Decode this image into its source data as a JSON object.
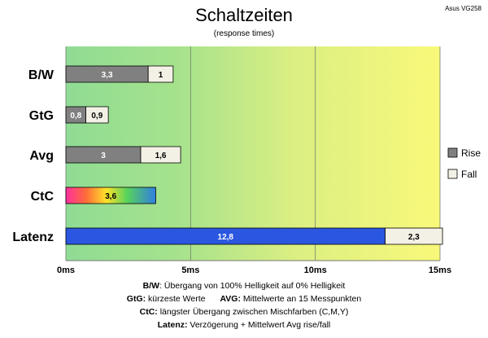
{
  "header": {
    "title": "Schaltzeiten",
    "subtitle": "(response times)",
    "model": "Asus VG258"
  },
  "chart_data": {
    "type": "bar",
    "orientation": "horizontal",
    "stacked": true,
    "categories": [
      "B/W",
      "GtG",
      "Avg",
      "CtC",
      "Latenz"
    ],
    "series": [
      {
        "name": "Rise",
        "values": [
          3.3,
          0.8,
          3,
          3.6,
          12.8
        ],
        "labels": [
          "3,3",
          "0,8",
          "3",
          "3,6",
          "12,8"
        ]
      },
      {
        "name": "Fall",
        "values": [
          1,
          0.9,
          1.6,
          null,
          2.3
        ],
        "labels": [
          "1",
          "0,9",
          "1,6",
          "",
          "2,3"
        ]
      }
    ],
    "xlim": [
      0,
      15
    ],
    "xticks": [
      0,
      5,
      10,
      15
    ],
    "xticklabels": [
      "0ms",
      "5ms",
      "10ms",
      "15ms"
    ],
    "grid": true,
    "legend_position": "right",
    "background_gradient": "green to yellow",
    "colors": {
      "rise": "#808080",
      "fall": "#f3f0e5",
      "latenz_rise": "#2b57e0",
      "bg_green": "#93dc93",
      "bg_yellow": "#f7f77a"
    }
  },
  "notes": {
    "bw_key": "B/W",
    "bw_text": ":  Übergang von 100% Helligkeit auf 0% Helligkeit",
    "gtg_key": "GtG:",
    "gtg_text": " kürzeste  Werte",
    "avg_key": "AVG:",
    "avg_text": " Mittelwerte  an 15 Messpunkten",
    "ctc_key": "CtC:",
    "ctc_text": " längster Übergang  zwischen Mischfarben  (C,M,Y)",
    "lat_key": "Latenz:",
    "lat_text": " Verzögerung  + Mittelwert  Avg rise/fall"
  }
}
